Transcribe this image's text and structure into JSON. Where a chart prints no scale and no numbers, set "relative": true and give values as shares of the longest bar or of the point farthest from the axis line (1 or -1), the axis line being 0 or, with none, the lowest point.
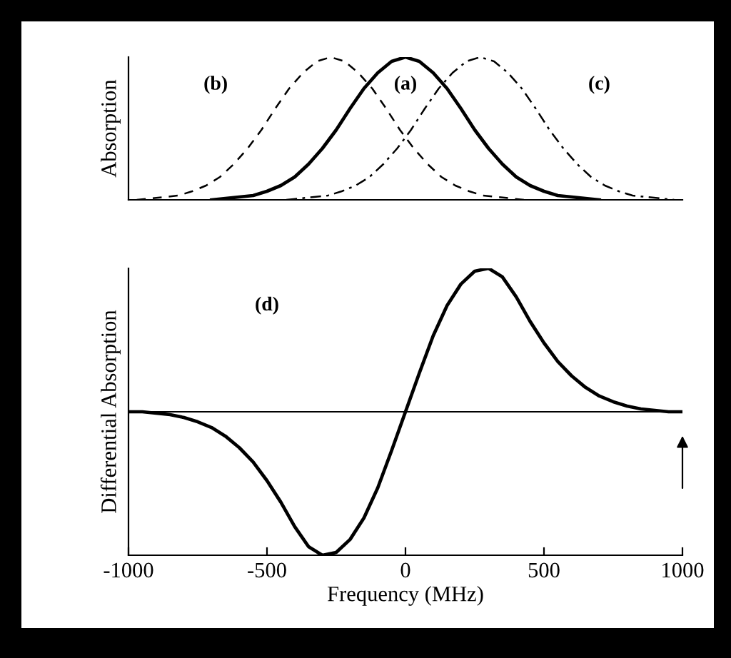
{
  "chart_data": [
    {
      "type": "line",
      "ylabel": "Absorption",
      "relative": true,
      "xlim": [
        -1000,
        1000
      ],
      "tick_labels": false,
      "grid": false,
      "legend": false,
      "series": [
        {
          "name": "(a)",
          "color": "#000000",
          "line_style": "solid",
          "x": [
            -700,
            -650,
            -600,
            -550,
            -500,
            -450,
            -400,
            -350,
            -300,
            -250,
            -200,
            -150,
            -100,
            -50,
            0,
            50,
            100,
            150,
            200,
            250,
            300,
            350,
            400,
            450,
            500,
            550,
            600,
            650,
            700
          ],
          "values": [
            0,
            0.01,
            0.02,
            0.03,
            0.06,
            0.1,
            0.16,
            0.25,
            0.36,
            0.49,
            0.64,
            0.78,
            0.89,
            0.97,
            1,
            0.97,
            0.89,
            0.78,
            0.64,
            0.49,
            0.36,
            0.25,
            0.16,
            0.1,
            0.06,
            0.03,
            0.02,
            0.01,
            0
          ]
        },
        {
          "name": "(b)",
          "color": "#000000",
          "line_style": "dashed",
          "x": [
            -970,
            -920,
            -870,
            -820,
            -770,
            -720,
            -670,
            -620,
            -570,
            -520,
            -470,
            -420,
            -370,
            -320,
            -270,
            -220,
            -170,
            -120,
            -70,
            -20,
            30,
            80,
            130,
            180,
            230,
            280,
            330,
            380,
            430
          ],
          "values": [
            0,
            0.01,
            0.02,
            0.03,
            0.06,
            0.1,
            0.16,
            0.25,
            0.36,
            0.49,
            0.64,
            0.78,
            0.89,
            0.97,
            1,
            0.97,
            0.89,
            0.78,
            0.64,
            0.49,
            0.36,
            0.25,
            0.16,
            0.1,
            0.06,
            0.03,
            0.02,
            0.01,
            0
          ]
        },
        {
          "name": "(c)",
          "color": "#000000",
          "line_style": "dashdot",
          "x": [
            -430,
            -380,
            -330,
            -280,
            -230,
            -180,
            -130,
            -80,
            -30,
            20,
            70,
            120,
            170,
            220,
            270,
            320,
            370,
            420,
            470,
            520,
            570,
            620,
            670,
            720,
            770,
            820,
            870,
            920,
            970
          ],
          "values": [
            0,
            0.01,
            0.02,
            0.03,
            0.06,
            0.1,
            0.16,
            0.25,
            0.36,
            0.49,
            0.64,
            0.78,
            0.89,
            0.97,
            1,
            0.97,
            0.89,
            0.78,
            0.64,
            0.49,
            0.36,
            0.25,
            0.16,
            0.1,
            0.06,
            0.03,
            0.02,
            0.01,
            0
          ]
        }
      ]
    },
    {
      "type": "line",
      "ylabel": "Differential Absorption",
      "xlabel": "Frequency (MHz)",
      "relative": true,
      "xlim": [
        -1000,
        1000
      ],
      "xticks": [
        -1000,
        -500,
        0,
        500,
        1000
      ],
      "tick_labels": "x",
      "grid": false,
      "legend": false,
      "annotations": [
        "(d)"
      ],
      "ref_lines": [
        {
          "axis": "y",
          "value": 0,
          "color": "#000000"
        }
      ],
      "series": [
        {
          "color": "#000000",
          "line_style": "solid",
          "x": [
            -1000,
            -950,
            -900,
            -850,
            -800,
            -750,
            -700,
            -650,
            -600,
            -550,
            -500,
            -450,
            -400,
            -350,
            -300,
            -250,
            -200,
            -150,
            -100,
            -50,
            0,
            50,
            100,
            150,
            200,
            250,
            300,
            350,
            400,
            450,
            500,
            550,
            600,
            650,
            700,
            750,
            800,
            850,
            900,
            950,
            1000
          ],
          "values": [
            0,
            0,
            -0.01,
            -0.02,
            -0.04,
            -0.07,
            -0.11,
            -0.17,
            -0.25,
            -0.35,
            -0.48,
            -0.63,
            -0.8,
            -0.94,
            -1.0,
            -0.98,
            -0.89,
            -0.74,
            -0.53,
            -0.27,
            0,
            0.27,
            0.53,
            0.74,
            0.89,
            0.98,
            1.0,
            0.94,
            0.8,
            0.63,
            0.48,
            0.35,
            0.25,
            0.17,
            0.11,
            0.07,
            0.04,
            0.02,
            0.01,
            0,
            0
          ]
        }
      ]
    }
  ]
}
